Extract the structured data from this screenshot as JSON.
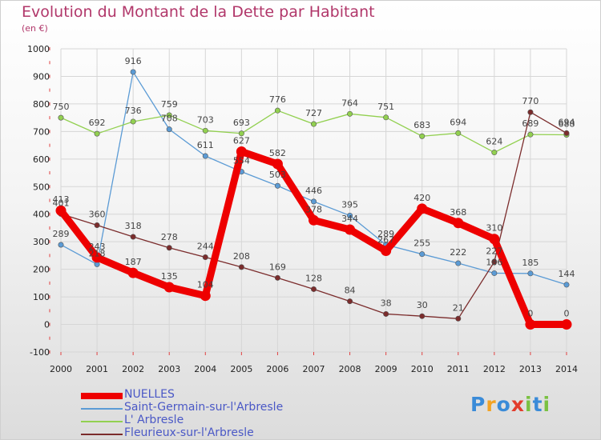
{
  "title": "Evolution du Montant de la Dette par Habitant",
  "subtitle": "(en €)",
  "brand": {
    "text": "Proxiti",
    "colors": [
      "#3a8bd8",
      "#f2a324",
      "#3a8bd8",
      "#e23c2c",
      "#7ac142",
      "#3a8bd8",
      "#7ac142"
    ]
  },
  "chart_data": {
    "type": "line",
    "categories": [
      "2000",
      "2001",
      "2002",
      "2003",
      "2004",
      "2005",
      "2006",
      "2007",
      "2008",
      "2009",
      "2010",
      "2011",
      "2012",
      "2013",
      "2014"
    ],
    "ylim": [
      -100,
      1000
    ],
    "yticks": [
      -100,
      0,
      100,
      200,
      300,
      400,
      500,
      600,
      700,
      800,
      900,
      1000
    ],
    "grid": true,
    "legend_position": "bottom-left",
    "series": [
      {
        "name": "NUELLES",
        "color": "#ee0000",
        "values": [
          413,
          243,
          187,
          135,
          104,
          627,
          582,
          378,
          344,
          267,
          420,
          368,
          310,
          0,
          0
        ]
      },
      {
        "name": "Saint-Germain-sur-l'Arbresle",
        "color": "#5b9bd5",
        "values": [
          289,
          218,
          916,
          708,
          611,
          554,
          503,
          446,
          395,
          289,
          255,
          222,
          186,
          185,
          144
        ]
      },
      {
        "name": "L' Arbresle",
        "color": "#92d050",
        "values": [
          750,
          692,
          736,
          759,
          703,
          693,
          776,
          727,
          764,
          751,
          683,
          694,
          624,
          689,
          688
        ]
      },
      {
        "name": "Fleurieux-sur-l'Arbresle",
        "color": "#7b2c2c",
        "values": [
          401,
          360,
          318,
          278,
          244,
          208,
          169,
          128,
          84,
          38,
          30,
          21,
          227,
          770,
          694
        ]
      }
    ]
  }
}
